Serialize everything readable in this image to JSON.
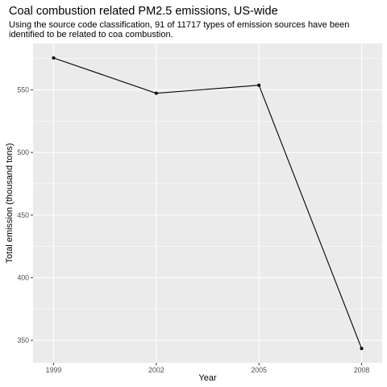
{
  "chart_data": {
    "type": "line",
    "title": "Coal combustion related PM2.5 emissions, US-wide",
    "subtitle_lines": [
      "Using the source code classification, 91 of 11717 types of emission sources have been",
      "identified to be related to coa combustion."
    ],
    "xlabel": "Year",
    "ylabel": "Total emission (thousand tons)",
    "x": [
      1999,
      2002,
      2005,
      2008
    ],
    "values": [
      575.5,
      547.3,
      553.7,
      343.4
    ],
    "xticks": [
      1999,
      2002,
      2005,
      2008
    ],
    "xtick_labels": [
      "1999",
      "2002",
      "2005",
      "2008"
    ],
    "yticks": [
      350,
      400,
      450,
      500,
      550
    ],
    "ytick_labels": [
      "350",
      "400",
      "450",
      "500",
      "550"
    ],
    "xlim": [
      1998.4,
      2008.6
    ],
    "ylim": [
      332,
      587
    ],
    "grid": true,
    "colors": {
      "panel": "#ebebeb",
      "grid_major": "#ffffff",
      "line": "#000000",
      "point": "#000000",
      "tick_mark": "#333333"
    }
  }
}
